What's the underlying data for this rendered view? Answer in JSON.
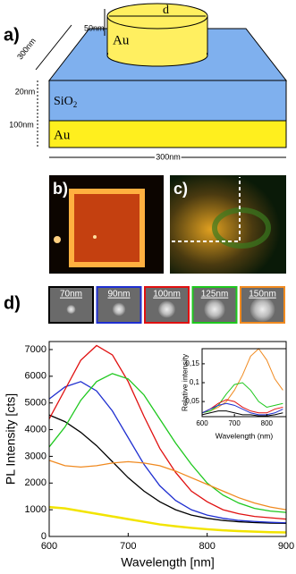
{
  "panel_a": {
    "label": "a)",
    "d": "d",
    "cyl_height": "50nm",
    "au_top": "Au",
    "diag": "300nm",
    "sio2_thickness": "20nm",
    "sio2": "SiO",
    "sio2_sub": "2",
    "au_thickness": "100nm",
    "au_bottom": "Au",
    "width": "300nm"
  },
  "panel_b": {
    "label": "b)"
  },
  "panel_c": {
    "label": "c)"
  },
  "panel_d": {
    "label": "d)",
    "thumbnails": [
      {
        "label": "70nm",
        "color": "#000000"
      },
      {
        "label": "90nm",
        "color": "#1f2fd0"
      },
      {
        "label": "100nm",
        "color": "#e01010"
      },
      {
        "label": "125nm",
        "color": "#1ec81e"
      },
      {
        "label": "150nm",
        "color": "#f08a20"
      }
    ]
  },
  "chart_data": [
    {
      "type": "line",
      "x_label": "Wavelength [nm]",
      "y_label": "PL Intensity [cts]",
      "x": [
        600,
        620,
        640,
        660,
        680,
        700,
        720,
        740,
        760,
        780,
        800,
        820,
        840,
        860,
        880,
        900
      ],
      "xlim": [
        600,
        900
      ],
      "xticks": [
        600,
        700,
        800,
        900
      ],
      "ylim": [
        0,
        7300
      ],
      "yticks": [
        0,
        1000,
        2000,
        3000,
        4000,
        5000,
        6000,
        7000
      ],
      "series": [
        {
          "color": "#000000",
          "values": [
            4550,
            4300,
            3900,
            3400,
            2800,
            2200,
            1700,
            1300,
            1000,
            800,
            680,
            600,
            550,
            520,
            500,
            490
          ]
        },
        {
          "color": "#1f2fd0",
          "values": [
            5150,
            5600,
            5800,
            5450,
            4700,
            3700,
            2700,
            1900,
            1350,
            1000,
            800,
            680,
            600,
            560,
            530,
            510
          ]
        },
        {
          "color": "#e01010",
          "values": [
            4400,
            5500,
            6600,
            7150,
            6800,
            5800,
            4500,
            3300,
            2400,
            1700,
            1300,
            1000,
            850,
            750,
            700,
            650
          ]
        },
        {
          "color": "#1ec81e",
          "values": [
            3350,
            4100,
            5100,
            5800,
            6100,
            5900,
            5300,
            4400,
            3500,
            2700,
            2000,
            1550,
            1250,
            1050,
            950,
            900
          ]
        },
        {
          "color": "#f08a20",
          "values": [
            2850,
            2650,
            2600,
            2650,
            2750,
            2800,
            2750,
            2650,
            2450,
            2200,
            1950,
            1700,
            1450,
            1250,
            1100,
            1000
          ]
        },
        {
          "color": "#f2e400",
          "values": [
            1100,
            1050,
            950,
            850,
            750,
            650,
            550,
            450,
            380,
            320,
            270,
            230,
            200,
            180,
            160,
            150
          ]
        }
      ]
    },
    {
      "type": "line",
      "x_label": "Wavelength (nm)",
      "y_label": "Relative intensity",
      "x": [
        600,
        625,
        650,
        675,
        700,
        725,
        750,
        775,
        800,
        825,
        850
      ],
      "xlim": [
        600,
        860
      ],
      "xticks": [
        600,
        700,
        800
      ],
      "ylim": [
        0.01,
        0.19
      ],
      "yticks": [
        {
          "value": 0.05,
          "label": "0,05"
        },
        {
          "value": 0.1,
          "label": "0,1"
        },
        {
          "value": 0.15,
          "label": "0,15"
        }
      ],
      "series": [
        {
          "color": "#f08a20",
          "values": [
            0.02,
            0.025,
            0.035,
            0.05,
            0.08,
            0.12,
            0.17,
            0.19,
            0.16,
            0.11,
            0.08
          ]
        },
        {
          "color": "#1ec81e",
          "values": [
            0.02,
            0.025,
            0.04,
            0.07,
            0.095,
            0.1,
            0.08,
            0.05,
            0.035,
            0.04,
            0.045
          ]
        },
        {
          "color": "#e01010",
          "values": [
            0.02,
            0.03,
            0.045,
            0.055,
            0.05,
            0.035,
            0.025,
            0.02,
            0.02,
            0.03,
            0.035
          ]
        },
        {
          "color": "#1f2fd0",
          "values": [
            0.02,
            0.03,
            0.04,
            0.045,
            0.04,
            0.03,
            0.02,
            0.015,
            0.015,
            0.02,
            0.03
          ]
        },
        {
          "color": "#000000",
          "values": [
            0.015,
            0.02,
            0.025,
            0.025,
            0.02,
            0.015,
            0.015,
            0.012,
            0.012,
            0.015,
            0.02
          ]
        }
      ]
    }
  ]
}
